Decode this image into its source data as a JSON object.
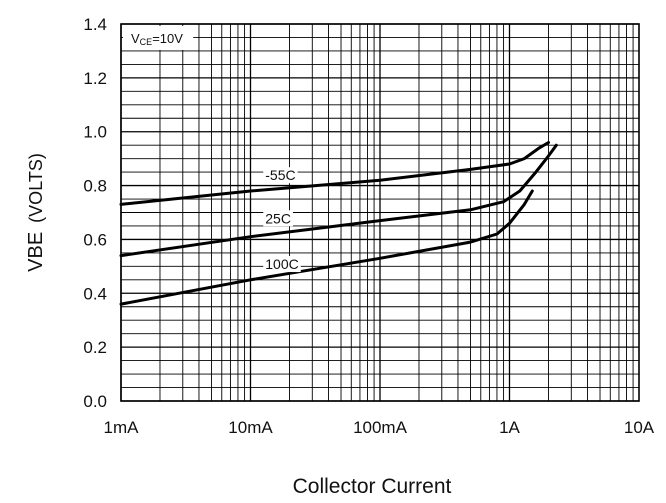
{
  "chart_data": {
    "type": "line",
    "xlabel": "Collector Current",
    "ylabel_main": "VBE",
    "ylabel_unit": "(VOLTS)",
    "x_scale": "log",
    "x_unit": "A",
    "xlim": [
      0.001,
      10
    ],
    "ylim": [
      0,
      1.4
    ],
    "grid": true,
    "x_ticks": [
      {
        "value": 0.001,
        "label": "1mA"
      },
      {
        "value": 0.01,
        "label": "10mA"
      },
      {
        "value": 0.1,
        "label": "100mA"
      },
      {
        "value": 1,
        "label": "1A"
      },
      {
        "value": 10,
        "label": "10A"
      }
    ],
    "y_ticks": [
      {
        "value": 0,
        "label": "0.0"
      },
      {
        "value": 0.2,
        "label": "0.2"
      },
      {
        "value": 0.4,
        "label": "0.4"
      },
      {
        "value": 0.6,
        "label": "0.6"
      },
      {
        "value": 0.8,
        "label": "0.8"
      },
      {
        "value": 1.0,
        "label": "1.0"
      },
      {
        "value": 1.2,
        "label": "1.2"
      },
      {
        "value": 1.4,
        "label": "1.4"
      }
    ],
    "annotation": {
      "prefix": "V",
      "subscript": "CE",
      "suffix": "=10V"
    },
    "series": [
      {
        "name": "-55C",
        "label_at": {
          "x": 0.013,
          "y": 0.82
        },
        "points": [
          [
            0.001,
            0.73
          ],
          [
            0.01,
            0.78
          ],
          [
            0.1,
            0.82
          ],
          [
            0.5,
            0.86
          ],
          [
            1.0,
            0.88
          ],
          [
            1.3,
            0.9
          ],
          [
            1.7,
            0.94
          ],
          [
            2.0,
            0.96
          ]
        ]
      },
      {
        "name": "25C",
        "label_at": {
          "x": 0.013,
          "y": 0.66
        },
        "points": [
          [
            0.001,
            0.54
          ],
          [
            0.01,
            0.61
          ],
          [
            0.1,
            0.67
          ],
          [
            0.5,
            0.71
          ],
          [
            0.9,
            0.74
          ],
          [
            1.2,
            0.78
          ],
          [
            1.6,
            0.85
          ],
          [
            2.0,
            0.91
          ],
          [
            2.3,
            0.95
          ]
        ]
      },
      {
        "name": "100C",
        "label_at": {
          "x": 0.013,
          "y": 0.49
        },
        "points": [
          [
            0.001,
            0.36
          ],
          [
            0.01,
            0.45
          ],
          [
            0.1,
            0.53
          ],
          [
            0.5,
            0.59
          ],
          [
            0.8,
            0.62
          ],
          [
            1.0,
            0.66
          ],
          [
            1.3,
            0.73
          ],
          [
            1.5,
            0.78
          ]
        ]
      }
    ]
  }
}
